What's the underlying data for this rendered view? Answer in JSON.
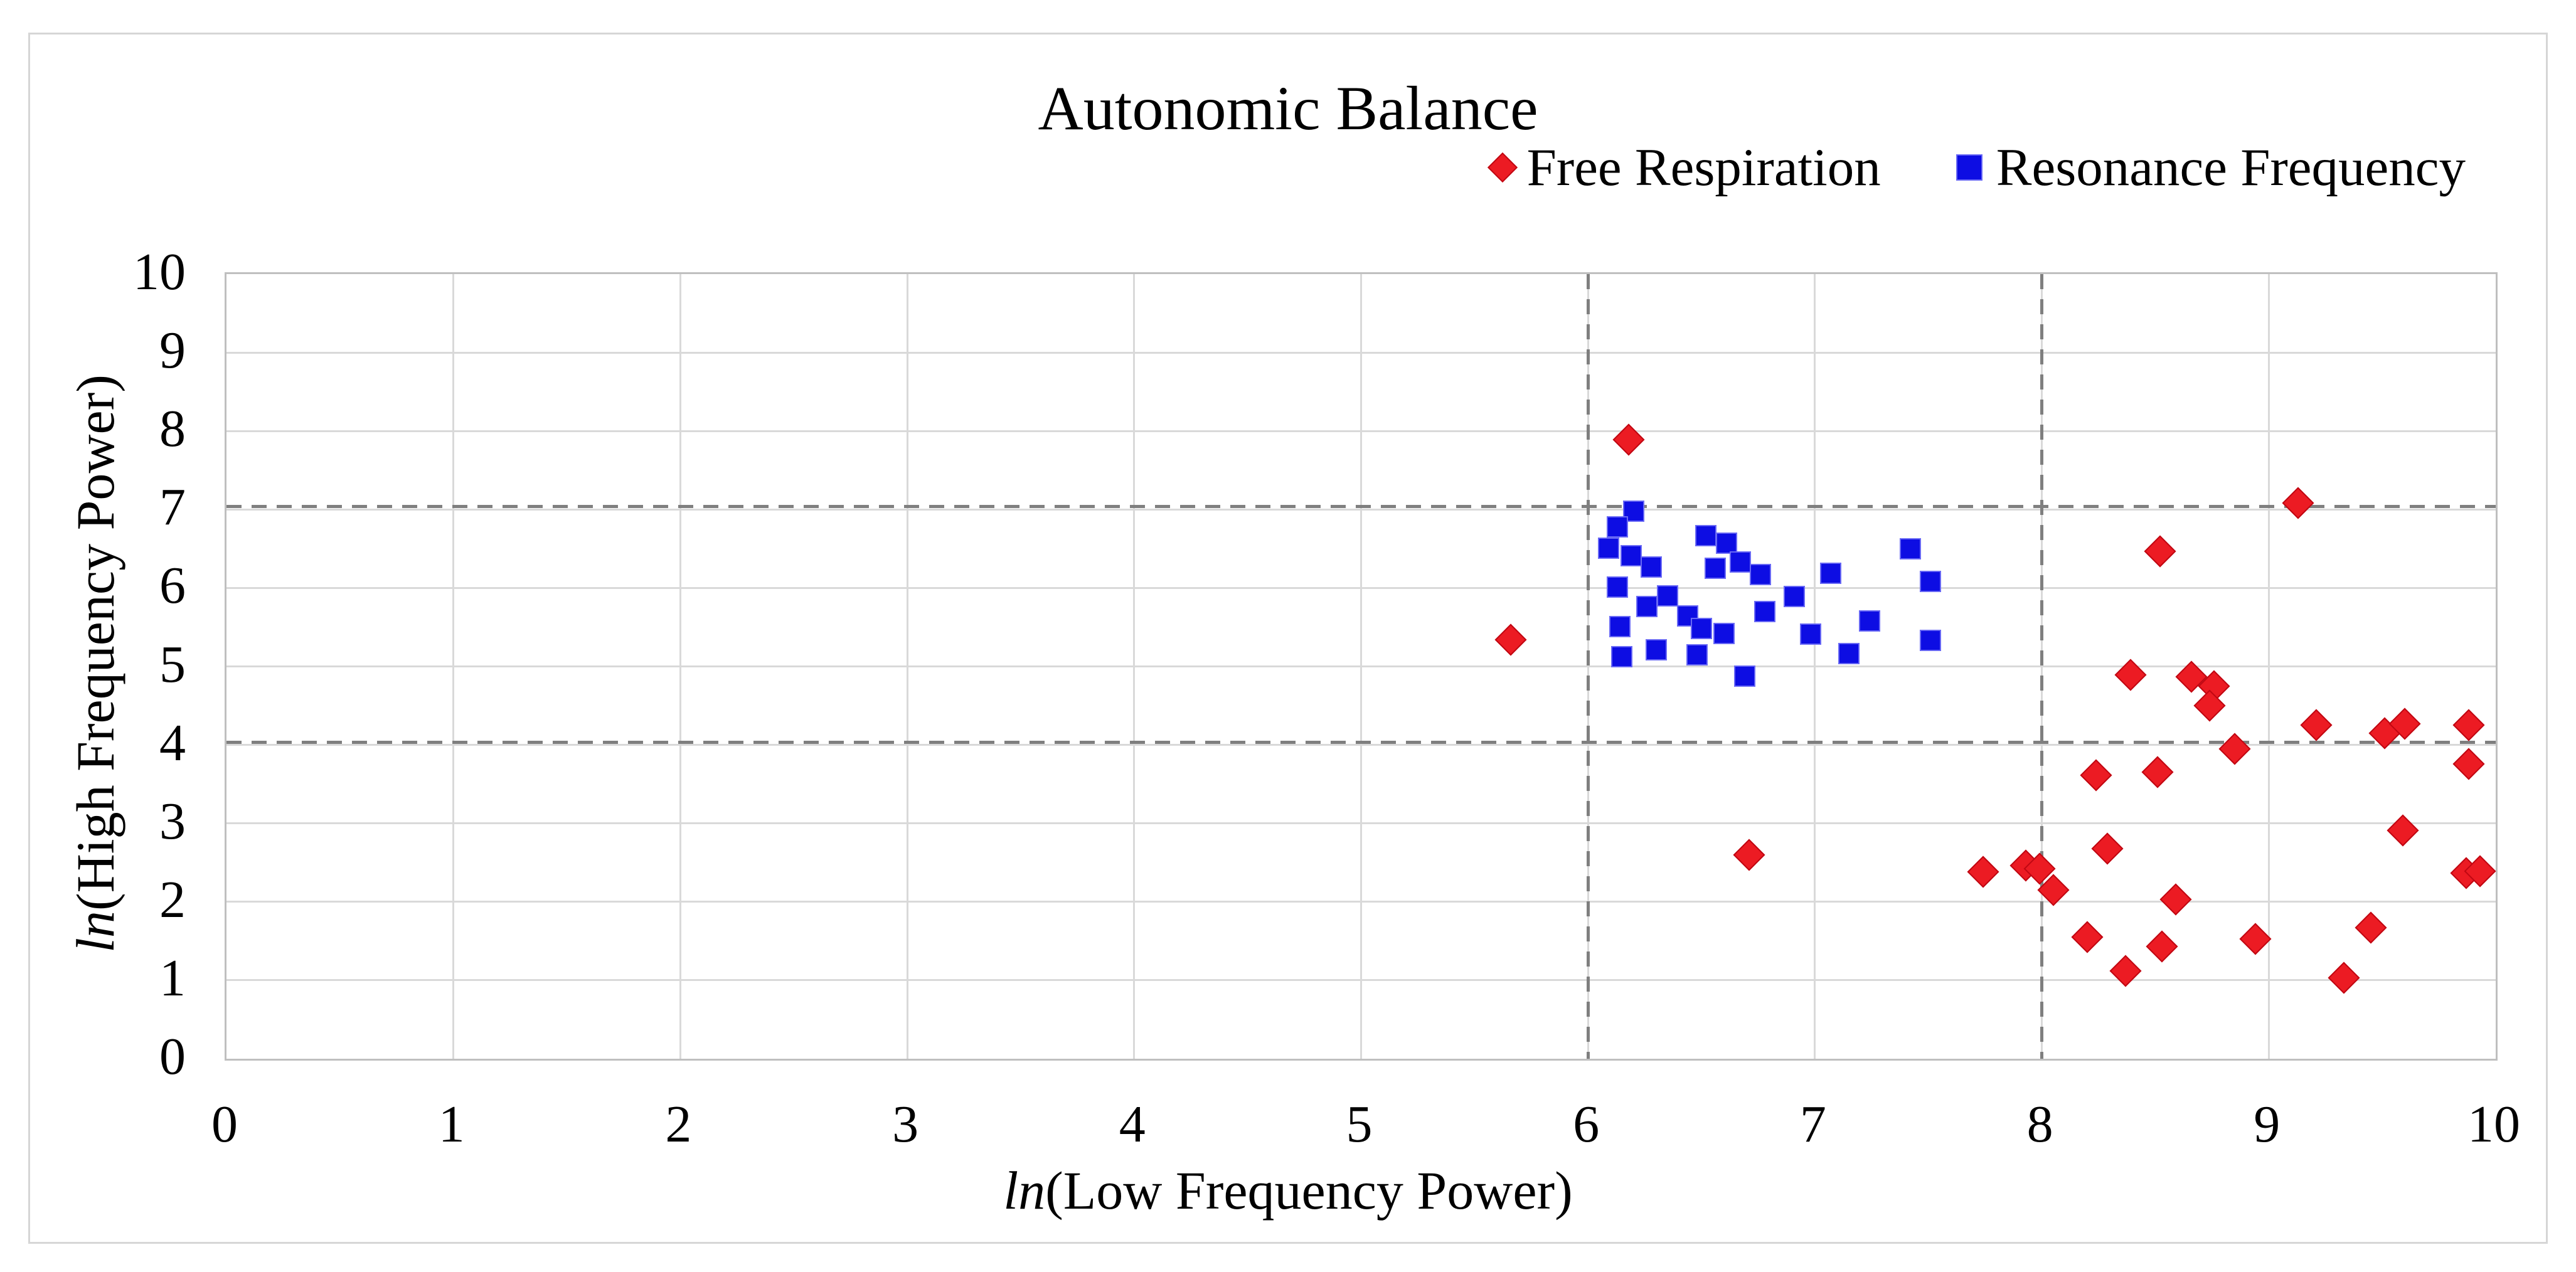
{
  "title": "Autonomic Balance",
  "legend": {
    "position": "top-right",
    "items": [
      {
        "label": "Free Respiration",
        "marker": "diamond",
        "color": "#ec1b23"
      },
      {
        "label": "Resonance Frequency",
        "marker": "square",
        "color": "#0d0de3"
      }
    ]
  },
  "axes": {
    "x_title_prefix": "ln",
    "x_title_rest": "(Low Frequency Power)",
    "y_title_prefix": "ln",
    "y_title_rest": "(High Frequency Power)",
    "x_ticks": [
      "0",
      "1",
      "2",
      "3",
      "4",
      "5",
      "6",
      "7",
      "8",
      "9",
      "10"
    ],
    "y_ticks": [
      "0",
      "1",
      "2",
      "3",
      "4",
      "5",
      "6",
      "7",
      "8",
      "9",
      "10"
    ]
  },
  "chart_data": {
    "type": "scatter",
    "title": "Autonomic Balance",
    "xlabel": "ln(Low Frequency Power)",
    "ylabel": "ln(High Frequency Power)",
    "xlim": [
      0,
      10
    ],
    "ylim": [
      0,
      10
    ],
    "grid": true,
    "gridline_values_x": [
      1,
      2,
      3,
      4,
      5,
      6,
      7,
      8,
      9
    ],
    "gridline_values_y": [
      1,
      2,
      3,
      4,
      5,
      6,
      7,
      8,
      9
    ],
    "reference_lines": {
      "x": [
        6,
        8
      ],
      "y": [
        7,
        4
      ],
      "style": "dashed",
      "color": "#7f7f7f"
    },
    "legend_position": "top-right",
    "series": [
      {
        "name": "Free Respiration",
        "marker": "diamond",
        "color": "#ec1b23",
        "points": [
          [
            5.66,
            5.34
          ],
          [
            6.18,
            7.89
          ],
          [
            6.71,
            2.6
          ],
          [
            7.74,
            2.38
          ],
          [
            7.93,
            2.46
          ],
          [
            7.99,
            2.42
          ],
          [
            8.05,
            2.15
          ],
          [
            8.24,
            3.61
          ],
          [
            8.51,
            3.65
          ],
          [
            8.29,
            2.68
          ],
          [
            8.59,
            2.03
          ],
          [
            8.2,
            1.55
          ],
          [
            8.37,
            1.12
          ],
          [
            8.53,
            1.43
          ],
          [
            8.39,
            4.89
          ],
          [
            8.52,
            6.47
          ],
          [
            8.66,
            4.87
          ],
          [
            8.76,
            4.75
          ],
          [
            8.74,
            4.5
          ],
          [
            8.85,
            3.95
          ],
          [
            8.94,
            1.53
          ],
          [
            9.13,
            7.08
          ],
          [
            9.21,
            4.25
          ],
          [
            9.51,
            4.15
          ],
          [
            9.6,
            4.27
          ],
          [
            9.88,
            4.25
          ],
          [
            9.88,
            3.76
          ],
          [
            9.59,
            2.91
          ],
          [
            9.87,
            2.37
          ],
          [
            9.93,
            2.39
          ],
          [
            9.45,
            1.67
          ],
          [
            9.33,
            1.03
          ]
        ]
      },
      {
        "name": "Resonance Frequency",
        "marker": "square",
        "color": "#0d0de3",
        "points": [
          [
            6.2,
            6.98
          ],
          [
            6.13,
            6.78
          ],
          [
            6.09,
            6.51
          ],
          [
            6.19,
            6.41
          ],
          [
            6.28,
            6.27
          ],
          [
            6.13,
            6.01
          ],
          [
            6.52,
            6.67
          ],
          [
            6.61,
            6.57
          ],
          [
            6.67,
            6.33
          ],
          [
            6.56,
            6.25
          ],
          [
            6.35,
            5.9
          ],
          [
            6.26,
            5.76
          ],
          [
            6.44,
            5.64
          ],
          [
            6.14,
            5.51
          ],
          [
            6.5,
            5.48
          ],
          [
            6.6,
            5.42
          ],
          [
            6.15,
            5.12
          ],
          [
            6.3,
            5.21
          ],
          [
            6.48,
            5.15
          ],
          [
            6.69,
            4.88
          ],
          [
            6.76,
            6.17
          ],
          [
            6.78,
            5.7
          ],
          [
            6.91,
            5.89
          ],
          [
            6.98,
            5.41
          ],
          [
            7.07,
            6.19
          ],
          [
            7.42,
            6.5
          ],
          [
            7.51,
            6.08
          ],
          [
            7.24,
            5.58
          ],
          [
            7.51,
            5.33
          ],
          [
            7.15,
            5.16
          ]
        ]
      }
    ]
  }
}
